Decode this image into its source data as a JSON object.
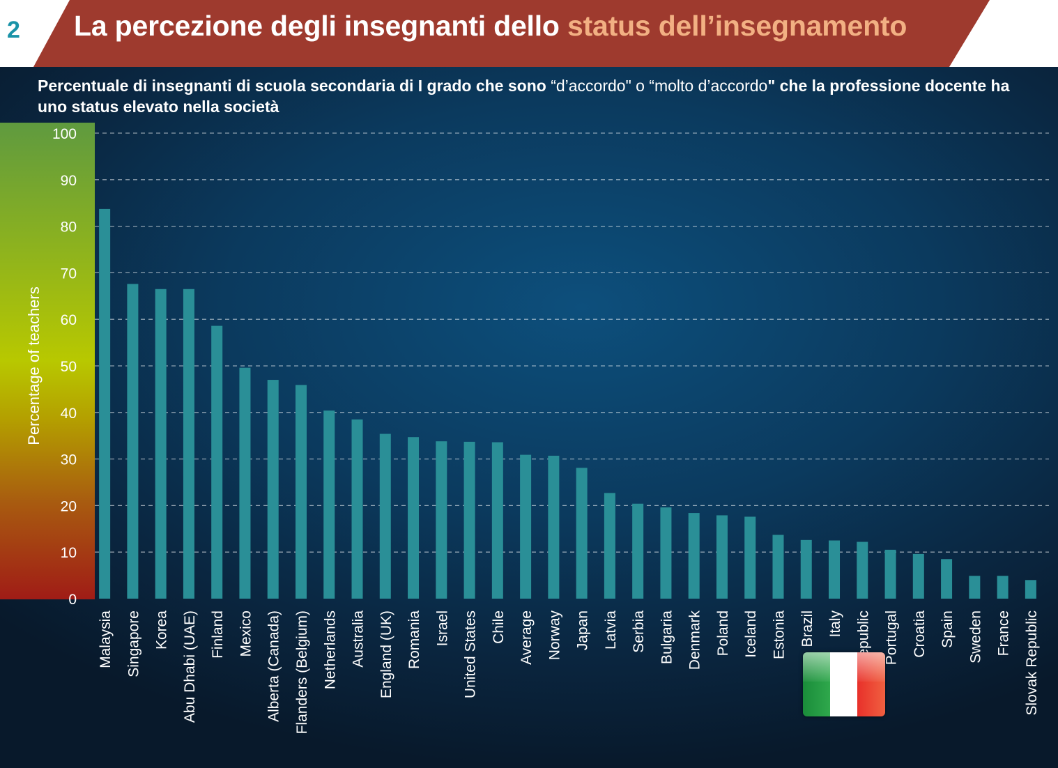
{
  "header": {
    "slide_number": "2",
    "title_main": "La percezione degli insegnanti dello ",
    "title_highlight": "status dell’insegnamento",
    "bar_color": "#9e3a2e",
    "highlight_color": "#f2b083"
  },
  "subtitle": {
    "part1": "Percentuale di insegnanti di scuola secondaria di I grado che sono ",
    "quote": "“d’accordo\" o “molto d’accordo",
    "part2": "\" che la professione docente ha uno status elevato nella società"
  },
  "flag_icon": "italy-flag-icon",
  "chart_data": {
    "type": "bar",
    "ylabel": "Percentage of teachers",
    "ylim": [
      0,
      100
    ],
    "yticks": [
      0,
      10,
      20,
      30,
      40,
      50,
      60,
      70,
      80,
      90,
      100
    ],
    "grid": true,
    "bar_color": "#2a8f97",
    "categories": [
      "Malaysia",
      "Singapore",
      "Korea",
      "Abu Dhabi (UAE)",
      "Finland",
      "Mexico",
      "Alberta (Canada)",
      "Flanders (Belgium)",
      "Netherlands",
      "Australia",
      "England (UK)",
      "Romania",
      "Israel",
      "United States",
      "Chile",
      "Average",
      "Norway",
      "Japan",
      "Latvia",
      "Serbia",
      "Bulgaria",
      "Denmark",
      "Poland",
      "Iceland",
      "Estonia",
      "Brazil",
      "Italy",
      "Czech Republic",
      "Portugal",
      "Croatia",
      "Spain",
      "Sweden",
      "France",
      "Slovak Republic"
    ],
    "values": [
      83.7,
      67.6,
      66.5,
      66.5,
      58.6,
      49.6,
      47.0,
      45.9,
      40.4,
      38.5,
      35.4,
      34.7,
      33.8,
      33.7,
      33.6,
      30.9,
      30.7,
      28.1,
      22.7,
      20.4,
      19.6,
      18.4,
      17.9,
      17.6,
      13.7,
      12.6,
      12.5,
      12.2,
      10.5,
      9.6,
      8.5,
      4.9,
      4.9,
      4.0
    ]
  }
}
